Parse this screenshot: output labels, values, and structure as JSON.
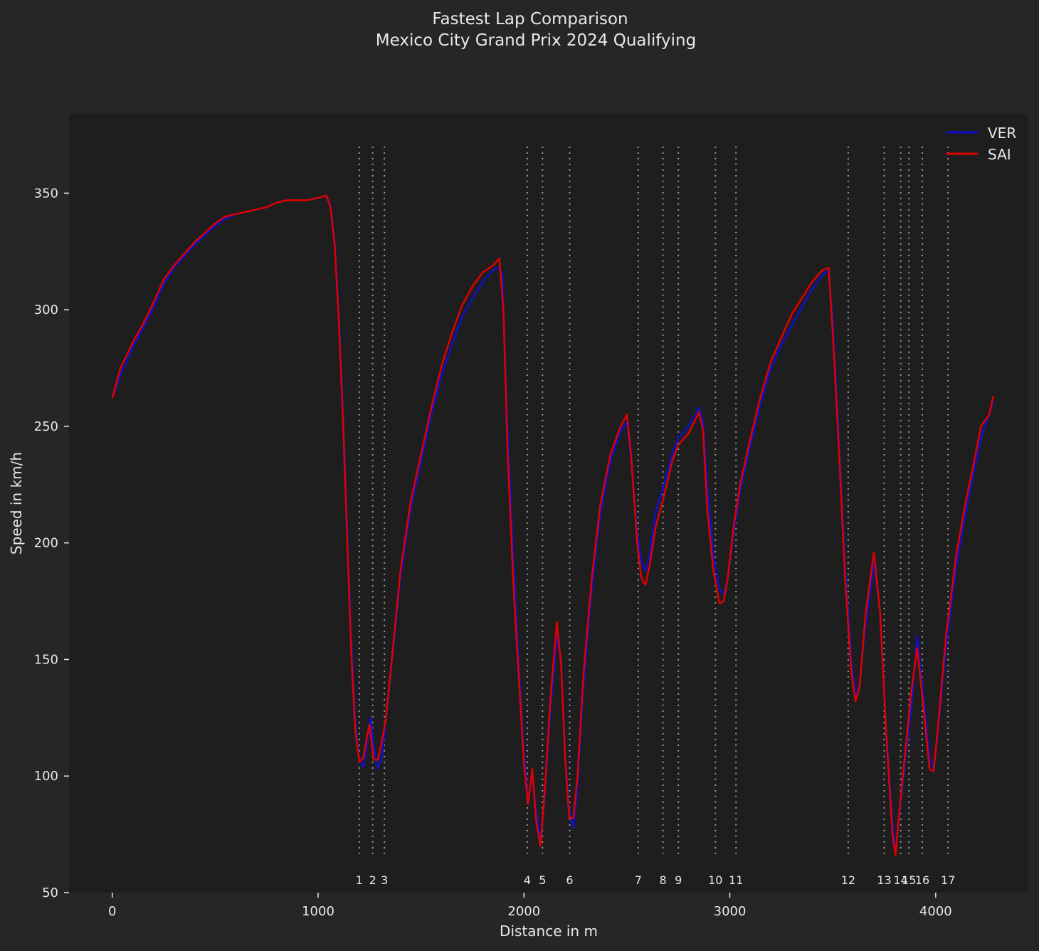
{
  "title_line1": "Fastest Lap Comparison",
  "title_line2": "Mexico City Grand Prix 2024 Qualifying",
  "colors": {
    "figure_bg": "#262626",
    "axes_bg": "#1e1e1e",
    "text": "#e8e8e8",
    "ver": "#1010d0",
    "sai": "#e00000",
    "corner_line": "#9a9a9a"
  },
  "chart_data": {
    "type": "line",
    "xlabel": "Distance in m",
    "ylabel": "Speed in km/h",
    "xlim": [
      -210,
      4450
    ],
    "ylim": [
      50,
      384
    ],
    "xticks": [
      0,
      1000,
      2000,
      3000,
      4000
    ],
    "yticks": [
      50,
      100,
      150,
      200,
      250,
      300,
      350
    ],
    "legend_position": "top-right",
    "series": [
      {
        "name": "VER",
        "color": "#1010d0",
        "points": [
          [
            0,
            262
          ],
          [
            40,
            272
          ],
          [
            100,
            284
          ],
          [
            150,
            292
          ],
          [
            200,
            301
          ],
          [
            250,
            311
          ],
          [
            300,
            318
          ],
          [
            350,
            323
          ],
          [
            400,
            328
          ],
          [
            450,
            332
          ],
          [
            500,
            336
          ],
          [
            550,
            339
          ],
          [
            600,
            341
          ],
          [
            650,
            342
          ],
          [
            700,
            343
          ],
          [
            750,
            344
          ],
          [
            800,
            346
          ],
          [
            850,
            347
          ],
          [
            900,
            347
          ],
          [
            950,
            347
          ],
          [
            1000,
            348
          ],
          [
            1040,
            349
          ],
          [
            1060,
            345
          ],
          [
            1080,
            330
          ],
          [
            1100,
            300
          ],
          [
            1120,
            260
          ],
          [
            1140,
            210
          ],
          [
            1160,
            160
          ],
          [
            1180,
            125
          ],
          [
            1200,
            106
          ],
          [
            1220,
            104
          ],
          [
            1240,
            115
          ],
          [
            1255,
            125
          ],
          [
            1270,
            113
          ],
          [
            1290,
            103
          ],
          [
            1310,
            108
          ],
          [
            1330,
            125
          ],
          [
            1360,
            150
          ],
          [
            1400,
            185
          ],
          [
            1450,
            215
          ],
          [
            1500,
            235
          ],
          [
            1550,
            255
          ],
          [
            1600,
            272
          ],
          [
            1650,
            285
          ],
          [
            1700,
            297
          ],
          [
            1750,
            305
          ],
          [
            1800,
            312
          ],
          [
            1850,
            317
          ],
          [
            1880,
            318
          ],
          [
            1895,
            315
          ],
          [
            1920,
            250
          ],
          [
            1950,
            190
          ],
          [
            1980,
            140
          ],
          [
            2000,
            110
          ],
          [
            2020,
            90
          ],
          [
            2040,
            100
          ],
          [
            2060,
            85
          ],
          [
            2080,
            73
          ],
          [
            2100,
            90
          ],
          [
            2130,
            130
          ],
          [
            2160,
            160
          ],
          [
            2180,
            150
          ],
          [
            2200,
            110
          ],
          [
            2220,
            85
          ],
          [
            2240,
            78
          ],
          [
            2260,
            95
          ],
          [
            2290,
            140
          ],
          [
            2330,
            180
          ],
          [
            2370,
            212
          ],
          [
            2420,
            235
          ],
          [
            2470,
            248
          ],
          [
            2500,
            252
          ],
          [
            2520,
            235
          ],
          [
            2550,
            205
          ],
          [
            2570,
            192
          ],
          [
            2590,
            188
          ],
          [
            2610,
            195
          ],
          [
            2640,
            213
          ],
          [
            2680,
            225
          ],
          [
            2720,
            238
          ],
          [
            2750,
            245
          ],
          [
            2800,
            250
          ],
          [
            2850,
            258
          ],
          [
            2870,
            252
          ],
          [
            2890,
            225
          ],
          [
            2920,
            195
          ],
          [
            2950,
            180
          ],
          [
            2970,
            178
          ],
          [
            2990,
            185
          ],
          [
            3020,
            205
          ],
          [
            3050,
            222
          ],
          [
            3100,
            242
          ],
          [
            3150,
            260
          ],
          [
            3200,
            275
          ],
          [
            3250,
            285
          ],
          [
            3300,
            293
          ],
          [
            3350,
            301
          ],
          [
            3400,
            309
          ],
          [
            3450,
            315
          ],
          [
            3480,
            317
          ],
          [
            3500,
            295
          ],
          [
            3530,
            245
          ],
          [
            3560,
            190
          ],
          [
            3590,
            150
          ],
          [
            3610,
            133
          ],
          [
            3630,
            140
          ],
          [
            3660,
            165
          ],
          [
            3700,
            192
          ],
          [
            3730,
            170
          ],
          [
            3760,
            120
          ],
          [
            3790,
            80
          ],
          [
            3805,
            68
          ],
          [
            3820,
            80
          ],
          [
            3850,
            105
          ],
          [
            3880,
            128
          ],
          [
            3910,
            160
          ],
          [
            3940,
            135
          ],
          [
            3970,
            108
          ],
          [
            3990,
            103
          ],
          [
            4010,
            118
          ],
          [
            4050,
            155
          ],
          [
            4100,
            190
          ],
          [
            4140,
            210
          ],
          [
            4180,
            228
          ],
          [
            4220,
            245
          ],
          [
            4260,
            255
          ],
          [
            4280,
            261
          ]
        ]
      },
      {
        "name": "SAI",
        "color": "#e00000",
        "points": [
          [
            0,
            262
          ],
          [
            40,
            275
          ],
          [
            100,
            286
          ],
          [
            150,
            294
          ],
          [
            200,
            303
          ],
          [
            250,
            313
          ],
          [
            300,
            319
          ],
          [
            350,
            324
          ],
          [
            400,
            329
          ],
          [
            450,
            333
          ],
          [
            500,
            337
          ],
          [
            550,
            340
          ],
          [
            600,
            341
          ],
          [
            650,
            342
          ],
          [
            700,
            343
          ],
          [
            750,
            344
          ],
          [
            800,
            346
          ],
          [
            850,
            347
          ],
          [
            900,
            347
          ],
          [
            950,
            347
          ],
          [
            1000,
            348
          ],
          [
            1040,
            349
          ],
          [
            1060,
            344
          ],
          [
            1080,
            328
          ],
          [
            1100,
            296
          ],
          [
            1120,
            255
          ],
          [
            1140,
            205
          ],
          [
            1160,
            155
          ],
          [
            1180,
            120
          ],
          [
            1200,
            106
          ],
          [
            1220,
            108
          ],
          [
            1240,
            118
          ],
          [
            1250,
            122
          ],
          [
            1270,
            107
          ],
          [
            1290,
            107
          ],
          [
            1310,
            115
          ],
          [
            1330,
            125
          ],
          [
            1360,
            152
          ],
          [
            1400,
            188
          ],
          [
            1450,
            218
          ],
          [
            1500,
            238
          ],
          [
            1550,
            258
          ],
          [
            1600,
            276
          ],
          [
            1650,
            290
          ],
          [
            1700,
            302
          ],
          [
            1750,
            310
          ],
          [
            1800,
            316
          ],
          [
            1850,
            319
          ],
          [
            1880,
            322
          ],
          [
            1900,
            300
          ],
          [
            1920,
            240
          ],
          [
            1950,
            180
          ],
          [
            1980,
            135
          ],
          [
            2000,
            105
          ],
          [
            2020,
            88
          ],
          [
            2040,
            103
          ],
          [
            2060,
            80
          ],
          [
            2080,
            70
          ],
          [
            2100,
            92
          ],
          [
            2130,
            135
          ],
          [
            2160,
            166
          ],
          [
            2180,
            148
          ],
          [
            2200,
            108
          ],
          [
            2220,
            82
          ],
          [
            2240,
            82
          ],
          [
            2260,
            100
          ],
          [
            2290,
            145
          ],
          [
            2330,
            185
          ],
          [
            2370,
            216
          ],
          [
            2420,
            238
          ],
          [
            2470,
            250
          ],
          [
            2500,
            255
          ],
          [
            2520,
            238
          ],
          [
            2550,
            200
          ],
          [
            2570,
            185
          ],
          [
            2590,
            182
          ],
          [
            2610,
            190
          ],
          [
            2640,
            207
          ],
          [
            2680,
            220
          ],
          [
            2720,
            235
          ],
          [
            2750,
            242
          ],
          [
            2800,
            247
          ],
          [
            2850,
            256
          ],
          [
            2870,
            248
          ],
          [
            2890,
            215
          ],
          [
            2920,
            188
          ],
          [
            2950,
            174
          ],
          [
            2970,
            175
          ],
          [
            2990,
            185
          ],
          [
            3020,
            208
          ],
          [
            3050,
            225
          ],
          [
            3100,
            245
          ],
          [
            3150,
            263
          ],
          [
            3200,
            278
          ],
          [
            3250,
            288
          ],
          [
            3300,
            298
          ],
          [
            3350,
            305
          ],
          [
            3400,
            312
          ],
          [
            3450,
            317
          ],
          [
            3480,
            318
          ],
          [
            3500,
            290
          ],
          [
            3530,
            240
          ],
          [
            3560,
            185
          ],
          [
            3590,
            145
          ],
          [
            3610,
            132
          ],
          [
            3630,
            138
          ],
          [
            3660,
            170
          ],
          [
            3700,
            196
          ],
          [
            3730,
            170
          ],
          [
            3760,
            118
          ],
          [
            3790,
            75
          ],
          [
            3805,
            66
          ],
          [
            3820,
            82
          ],
          [
            3850,
            108
          ],
          [
            3880,
            135
          ],
          [
            3910,
            155
          ],
          [
            3940,
            130
          ],
          [
            3970,
            103
          ],
          [
            3990,
            102
          ],
          [
            4010,
            120
          ],
          [
            4050,
            160
          ],
          [
            4100,
            195
          ],
          [
            4140,
            215
          ],
          [
            4180,
            232
          ],
          [
            4220,
            250
          ],
          [
            4260,
            255
          ],
          [
            4280,
            263
          ]
        ]
      }
    ],
    "corners": [
      {
        "label": "1",
        "distance": 1200
      },
      {
        "label": "2",
        "distance": 1265
      },
      {
        "label": "3",
        "distance": 1322
      },
      {
        "label": "4",
        "distance": 2016
      },
      {
        "label": "5",
        "distance": 2090
      },
      {
        "label": "6",
        "distance": 2222
      },
      {
        "label": "7",
        "distance": 2555
      },
      {
        "label": "8",
        "distance": 2675
      },
      {
        "label": "9",
        "distance": 2750
      },
      {
        "label": "10",
        "distance": 2930
      },
      {
        "label": "11",
        "distance": 3030
      },
      {
        "label": "12",
        "distance": 3575
      },
      {
        "label": "13",
        "distance": 3750
      },
      {
        "label": "14",
        "distance": 3830
      },
      {
        "label": "15",
        "distance": 3870
      },
      {
        "label": "16",
        "distance": 3935
      },
      {
        "label": "17",
        "distance": 4060
      }
    ]
  }
}
